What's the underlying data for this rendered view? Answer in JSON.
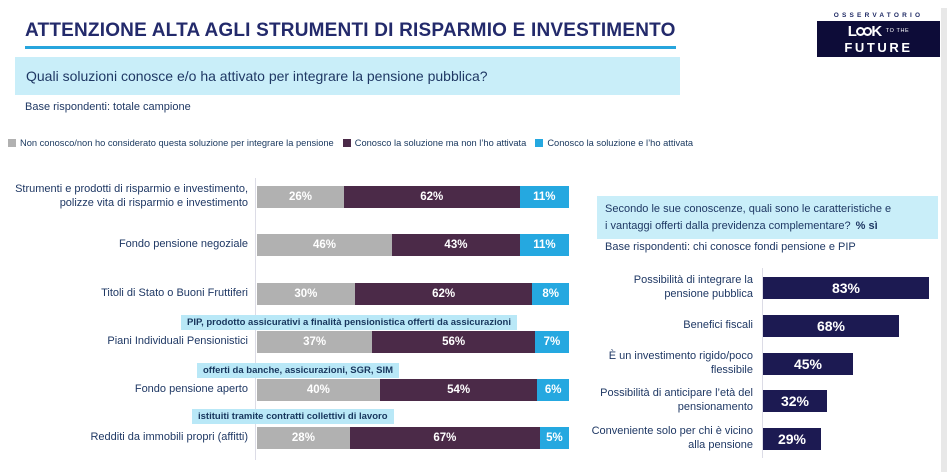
{
  "header": {
    "title": "ATTENZIONE ALTA AGLI STRUMENTI DI RISPARMIO E INVESTIMENTO",
    "question": "Quali soluzioni conosce e/o ha attivato per integrare la pensione pubblica?",
    "base": "Base rispondenti: totale campione"
  },
  "logo": {
    "kicker": "OSSERVATORIO",
    "word_start": "L",
    "word_end": "K",
    "tagline": "TO THE",
    "line2": "FUTURE"
  },
  "legend": [
    {
      "label": "Non conosco/non ho considerato questa soluzione per integrare la pensione",
      "color": "#b1b1b1"
    },
    {
      "label": "Conosco la soluzione ma non l’ho attivata",
      "color": "#4b2a48"
    },
    {
      "label": "Conosco la soluzione e l’ho attivata",
      "color": "#25a8e0"
    }
  ],
  "right_panel": {
    "question_line1": "Secondo le sue conoscenze, quali sono le caratteristiche e",
    "question_line2": "i vantaggi offerti dalla previdenza complementare?",
    "question_emphasis": "% sì",
    "base": "Base rispondenti: chi conosce fondi pensione e PIP"
  },
  "colors": {
    "title": "#232a6b",
    "text": "#1f3864",
    "underline": "#27a5dd",
    "highlight_bg": "#c9eef9",
    "callout_bg": "#b9e8f7",
    "logo_bg": "#0d0c38"
  },
  "chart_data": [
    {
      "type": "bar",
      "subtype": "stacked-horizontal",
      "title": "Quali soluzioni conosce e/o ha attivato per integrare la pensione pubblica?",
      "value_suffix": "%",
      "xlim": [
        0,
        100
      ],
      "legend_position": "top",
      "categories": [
        "Strumenti e prodotti di risparmio e investimento,\npolizze vita di risparmio e investimento",
        "Fondo pensione negoziale",
        "Titoli di Stato o Buoni Fruttiferi",
        "Piani Individuali Pensionistici",
        "Fondo pensione aperto",
        "Redditi da immobili propri (affitti)"
      ],
      "series": [
        {
          "name": "Non conosco/non ho considerato questa soluzione per integrare la pensione",
          "color": "#b1b1b1",
          "values": [
            26,
            46,
            30,
            37,
            40,
            28
          ]
        },
        {
          "name": "Conosco la soluzione ma non l’ho attivata",
          "color": "#4b2a48",
          "values": [
            62,
            43,
            62,
            56,
            54,
            67
          ]
        },
        {
          "name": "Conosco la soluzione e l’ho attivata",
          "color": "#25a8e0",
          "values": [
            11,
            11,
            8,
            7,
            6,
            5
          ]
        }
      ],
      "annotations": [
        {
          "text": "PIP, prodotto assicurativi a finalità pensionistica offerti da assicurazioni",
          "attached_to": "Piani Individuali Pensionistici"
        },
        {
          "text": "offerti da banche, assicurazioni, SGR, SIM",
          "attached_to": "Fondo pensione aperto"
        },
        {
          "text": "istituiti tramite contratti collettivi di lavoro",
          "attached_to": "Redditi da immobili propri (affitti)"
        }
      ]
    },
    {
      "type": "bar",
      "subtype": "horizontal",
      "title": "Secondo le sue conoscenze, quali sono le caratteristiche e i vantaggi offerti dalla previdenza complementare? % sì",
      "value_suffix": "%",
      "xlim": [
        0,
        100
      ],
      "bar_color": "#1c1a52",
      "categories": [
        "Possibilità di integrare la\npensione pubblica",
        "Benefici fiscali",
        "È un investimento rigido/poco\nflessibile",
        "Possibilità di anticipare l’età del\npensionamento",
        "Conveniente solo per chi è vicino\nalla pensione"
      ],
      "values": [
        83,
        68,
        45,
        32,
        29
      ]
    }
  ]
}
